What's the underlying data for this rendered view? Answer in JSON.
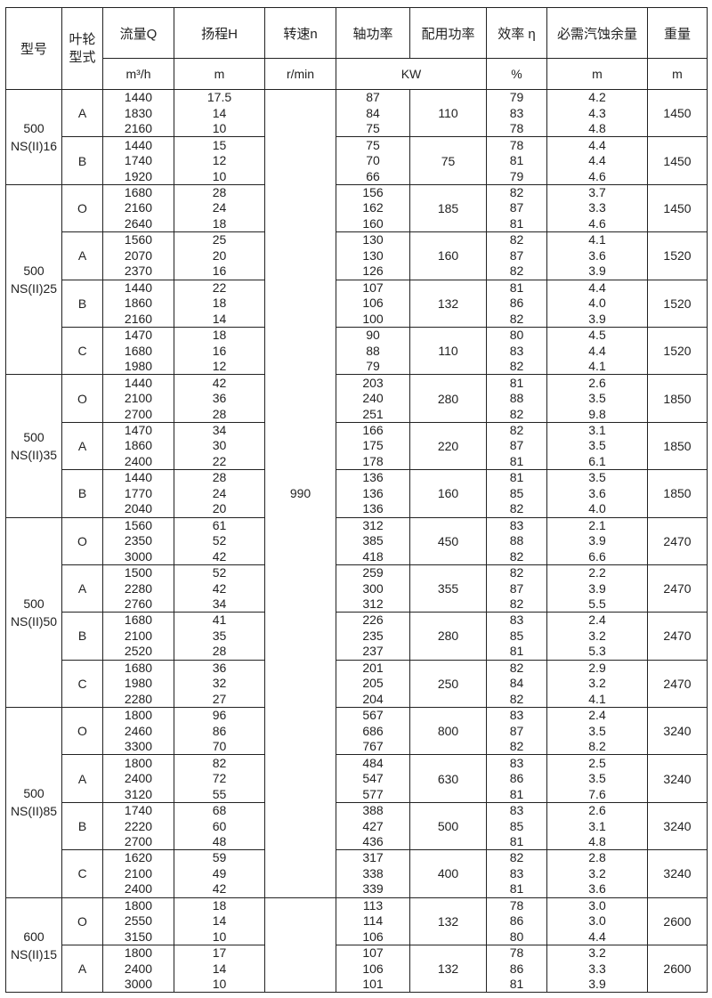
{
  "header": {
    "model": "型号",
    "impeller": "叶轮型式",
    "flow": "流量Q",
    "head": "扬程H",
    "speed": "转速n",
    "shaft_power": "轴功率",
    "rated_power": "配用功率",
    "efficiency": "效率 η",
    "npsh": "必需汽蚀余量",
    "weight": "重量"
  },
  "units": {
    "flow": "m³/h",
    "head": "m",
    "speed": "r/min",
    "power": "KW",
    "efficiency": "%",
    "npsh": "m",
    "weight": "m"
  },
  "speed": "990",
  "models": [
    {
      "line1": "500",
      "line2": "NS(II)16",
      "groups": [
        {
          "type": "A",
          "q": [
            "1440",
            "1830",
            "2160"
          ],
          "h": [
            "17.5",
            "14",
            "10"
          ],
          "p": [
            "87",
            "84",
            "75"
          ],
          "rated": "110",
          "eff": [
            "79",
            "83",
            "78"
          ],
          "npsh": [
            "4.2",
            "4.3",
            "4.8"
          ],
          "weight": "1450"
        },
        {
          "type": "B",
          "q": [
            "1440",
            "1740",
            "1920"
          ],
          "h": [
            "15",
            "12",
            "10"
          ],
          "p": [
            "75",
            "70",
            "66"
          ],
          "rated": "75",
          "eff": [
            "78",
            "81",
            "79"
          ],
          "npsh": [
            "4.4",
            "4.4",
            "4.6"
          ],
          "weight": "1450"
        }
      ]
    },
    {
      "line1": "500",
      "line2": "NS(II)25",
      "groups": [
        {
          "type": "O",
          "q": [
            "1680",
            "2160",
            "2640"
          ],
          "h": [
            "28",
            "24",
            "18"
          ],
          "p": [
            "156",
            "162",
            "160"
          ],
          "rated": "185",
          "eff": [
            "82",
            "87",
            "81"
          ],
          "npsh": [
            "3.7",
            "3.3",
            "4.6"
          ],
          "weight": "1450"
        },
        {
          "type": "A",
          "q": [
            "1560",
            "2070",
            "2370"
          ],
          "h": [
            "25",
            "20",
            "16"
          ],
          "p": [
            "130",
            "130",
            "126"
          ],
          "rated": "160",
          "eff": [
            "82",
            "87",
            "82"
          ],
          "npsh": [
            "4.1",
            "3.6",
            "3.9"
          ],
          "weight": "1520"
        },
        {
          "type": "B",
          "q": [
            "1440",
            "1860",
            "2160"
          ],
          "h": [
            "22",
            "18",
            "14"
          ],
          "p": [
            "107",
            "106",
            "100"
          ],
          "rated": "132",
          "eff": [
            "81",
            "86",
            "82"
          ],
          "npsh": [
            "4.4",
            "4.0",
            "3.9"
          ],
          "weight": "1520"
        },
        {
          "type": "C",
          "q": [
            "1470",
            "1680",
            "1980"
          ],
          "h": [
            "18",
            "16",
            "12"
          ],
          "p": [
            "90",
            "88",
            "79"
          ],
          "rated": "110",
          "eff": [
            "80",
            "83",
            "82"
          ],
          "npsh": [
            "4.5",
            "4.4",
            "4.1"
          ],
          "weight": "1520"
        }
      ]
    },
    {
      "line1": "500",
      "line2": "NS(II)35",
      "groups": [
        {
          "type": "O",
          "q": [
            "1440",
            "2100",
            "2700"
          ],
          "h": [
            "42",
            "36",
            "28"
          ],
          "p": [
            "203",
            "240",
            "251"
          ],
          "rated": "280",
          "eff": [
            "81",
            "88",
            "82"
          ],
          "npsh": [
            "2.6",
            "3.5",
            "9.8"
          ],
          "weight": "1850"
        },
        {
          "type": "A",
          "q": [
            "1470",
            "1860",
            "2400"
          ],
          "h": [
            "34",
            "30",
            "22"
          ],
          "p": [
            "166",
            "175",
            "178"
          ],
          "rated": "220",
          "eff": [
            "82",
            "87",
            "81"
          ],
          "npsh": [
            "3.1",
            "3.5",
            "6.1"
          ],
          "weight": "1850"
        },
        {
          "type": "B",
          "q": [
            "1440",
            "1770",
            "2040"
          ],
          "h": [
            "28",
            "24",
            "20"
          ],
          "p": [
            "136",
            "136",
            "136"
          ],
          "rated": "160",
          "eff": [
            "81",
            "85",
            "82"
          ],
          "npsh": [
            "3.5",
            "3.6",
            "4.0"
          ],
          "weight": "1850"
        }
      ]
    },
    {
      "line1": "500",
      "line2": "NS(II)50",
      "groups": [
        {
          "type": "O",
          "q": [
            "1560",
            "2350",
            "3000"
          ],
          "h": [
            "61",
            "52",
            "42"
          ],
          "p": [
            "312",
            "385",
            "418"
          ],
          "rated": "450",
          "eff": [
            "83",
            "88",
            "82"
          ],
          "npsh": [
            "2.1",
            "3.9",
            "6.6"
          ],
          "weight": "2470"
        },
        {
          "type": "A",
          "q": [
            "1500",
            "2280",
            "2760"
          ],
          "h": [
            "52",
            "42",
            "34"
          ],
          "p": [
            "259",
            "300",
            "312"
          ],
          "rated": "355",
          "eff": [
            "82",
            "87",
            "82"
          ],
          "npsh": [
            "2.2",
            "3.9",
            "5.5"
          ],
          "weight": "2470"
        },
        {
          "type": "B",
          "q": [
            "1680",
            "2100",
            "2520"
          ],
          "h": [
            "41",
            "35",
            "28"
          ],
          "p": [
            "226",
            "235",
            "237"
          ],
          "rated": "280",
          "eff": [
            "83",
            "85",
            "81"
          ],
          "npsh": [
            "2.4",
            "3.2",
            "5.3"
          ],
          "weight": "2470"
        },
        {
          "type": "C",
          "q": [
            "1680",
            "1980",
            "2280"
          ],
          "h": [
            "36",
            "32",
            "27"
          ],
          "p": [
            "201",
            "205",
            "204"
          ],
          "rated": "250",
          "eff": [
            "82",
            "84",
            "82"
          ],
          "npsh": [
            "2.9",
            "3.2",
            "4.1"
          ],
          "weight": "2470"
        }
      ]
    },
    {
      "line1": "500",
      "line2": "NS(II)85",
      "groups": [
        {
          "type": "O",
          "q": [
            "1800",
            "2460",
            "3300"
          ],
          "h": [
            "96",
            "86",
            "70"
          ],
          "p": [
            "567",
            "686",
            "767"
          ],
          "rated": "800",
          "eff": [
            "83",
            "87",
            "82"
          ],
          "npsh": [
            "2.4",
            "3.5",
            "8.2"
          ],
          "weight": "3240"
        },
        {
          "type": "A",
          "q": [
            "1800",
            "2400",
            "3120"
          ],
          "h": [
            "82",
            "72",
            "55"
          ],
          "p": [
            "484",
            "547",
            "577"
          ],
          "rated": "630",
          "eff": [
            "83",
            "86",
            "81"
          ],
          "npsh": [
            "2.5",
            "3.5",
            "7.6"
          ],
          "weight": "3240"
        },
        {
          "type": "B",
          "q": [
            "1740",
            "2220",
            "2700"
          ],
          "h": [
            "68",
            "60",
            "48"
          ],
          "p": [
            "388",
            "427",
            "436"
          ],
          "rated": "500",
          "eff": [
            "83",
            "85",
            "81"
          ],
          "npsh": [
            "2.6",
            "3.1",
            "4.8"
          ],
          "weight": "3240"
        },
        {
          "type": "C",
          "q": [
            "1620",
            "2100",
            "2400"
          ],
          "h": [
            "59",
            "49",
            "42"
          ],
          "p": [
            "317",
            "338",
            "339"
          ],
          "rated": "400",
          "eff": [
            "82",
            "83",
            "81"
          ],
          "npsh": [
            "2.8",
            "3.2",
            "3.6"
          ],
          "weight": "3240"
        }
      ]
    },
    {
      "line1": "600",
      "line2": "NS(II)15",
      "groups": [
        {
          "type": "O",
          "q": [
            "1800",
            "2550",
            "3150"
          ],
          "h": [
            "18",
            "14",
            "10"
          ],
          "p": [
            "113",
            "114",
            "106"
          ],
          "rated": "132",
          "eff": [
            "78",
            "86",
            "80"
          ],
          "npsh": [
            "3.0",
            "3.0",
            "4.4"
          ],
          "weight": "2600"
        },
        {
          "type": "A",
          "q": [
            "1800",
            "2400",
            "3000"
          ],
          "h": [
            "17",
            "14",
            "10"
          ],
          "p": [
            "107",
            "106",
            "101"
          ],
          "rated": "132",
          "eff": [
            "78",
            "86",
            "81"
          ],
          "npsh": [
            "3.2",
            "3.3",
            "3.9"
          ],
          "weight": "2600"
        }
      ]
    }
  ]
}
